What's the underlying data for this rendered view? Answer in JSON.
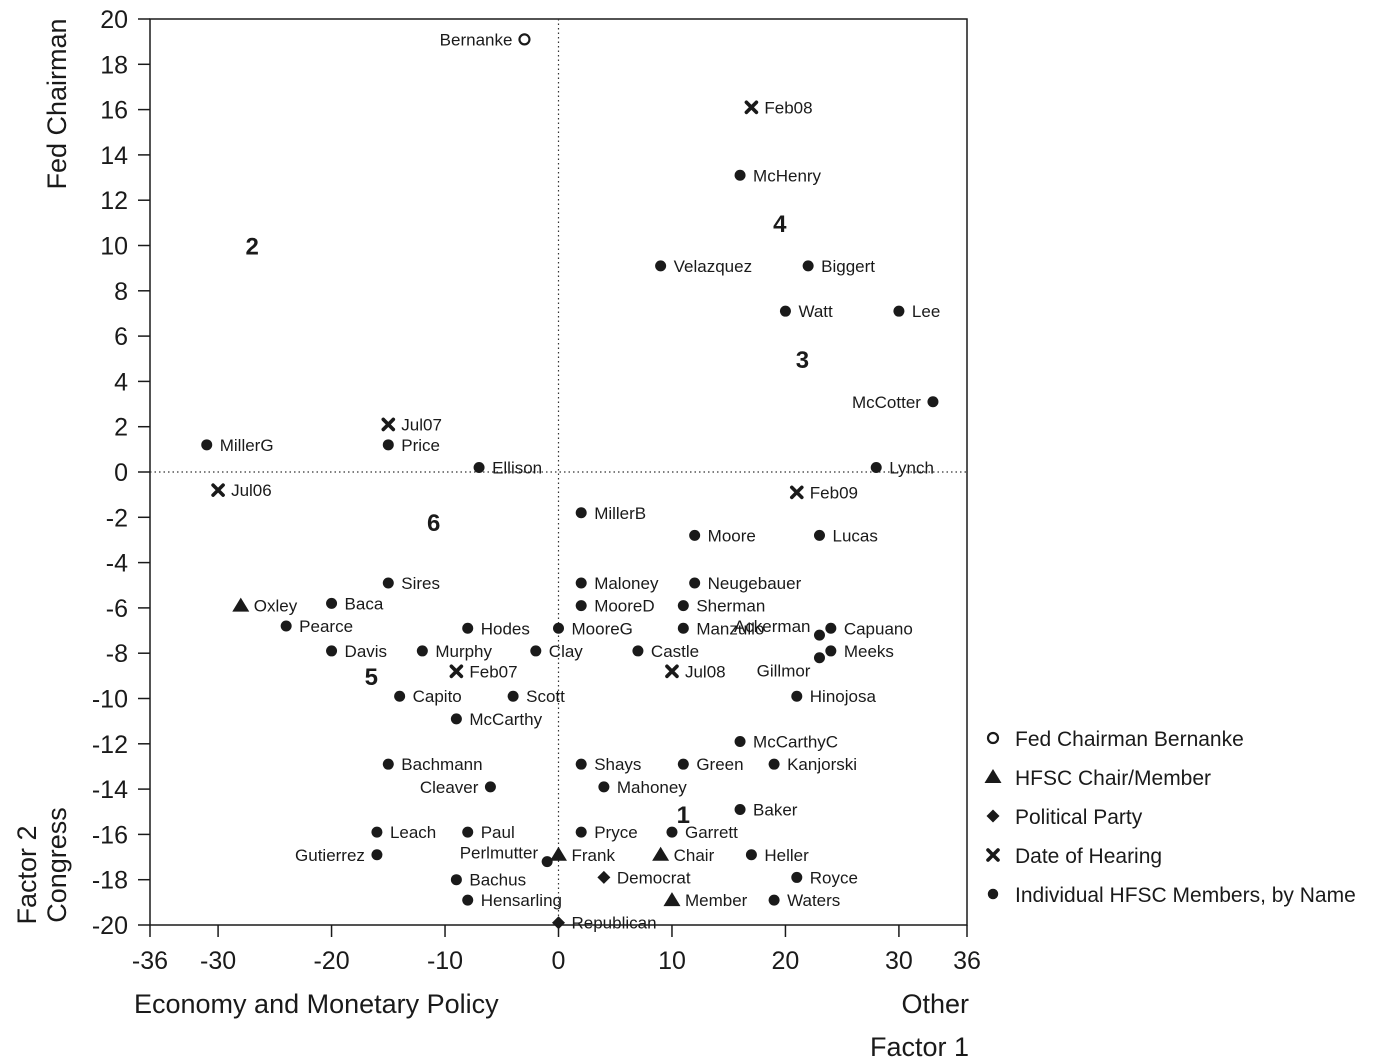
{
  "chart_data": {
    "type": "scatter",
    "title": "",
    "xlim": [
      -36,
      36
    ],
    "ylim": [
      -20,
      20
    ],
    "x_ticks": [
      "-36",
      "-30",
      "-20",
      "-10",
      "0",
      "10",
      "20",
      "30",
      "36"
    ],
    "y_ticks": [
      "20",
      "18",
      "16",
      "14",
      "12",
      "10",
      "8",
      "6",
      "4",
      "2",
      "0",
      "-2",
      "-4",
      "-6",
      "-8",
      "-10",
      "-12",
      "-14",
      "-16",
      "-18",
      "-20"
    ],
    "x_axis": {
      "label_left": "Economy and Monetary Policy",
      "label_right": "Other",
      "label_factor": "Factor 1"
    },
    "y_axis": {
      "label_top": "Fed Chairman",
      "label_bottom": "Congress",
      "label_factor": "Factor 2"
    },
    "reference_lines": {
      "x": 0,
      "y": 0,
      "style": "dotted"
    },
    "grid": false,
    "legend_position": "right",
    "legend": [
      {
        "marker": "circle-open",
        "label": "Fed Chairman Bernanke"
      },
      {
        "marker": "triangle",
        "label": "HFSC Chair/Member"
      },
      {
        "marker": "diamond",
        "label": "Political Party"
      },
      {
        "marker": "x",
        "label": "Date of Hearing"
      },
      {
        "marker": "circle",
        "label": "Individual HFSC Members, by Name"
      }
    ],
    "regions": [
      {
        "label": "1",
        "x": 11,
        "y": -15.1
      },
      {
        "label": "2",
        "x": -27,
        "y": 10
      },
      {
        "label": "3",
        "x": 21.5,
        "y": 5
      },
      {
        "label": "4",
        "x": 19.5,
        "y": 11
      },
      {
        "label": "5",
        "x": -16.5,
        "y": -9
      },
      {
        "label": "6",
        "x": -11,
        "y": -2.2
      }
    ],
    "points": [
      {
        "label": "Bernanke",
        "marker": "circle-open",
        "x": -3,
        "y": 19.1,
        "anchor": "left"
      },
      {
        "label": "Feb08",
        "marker": "x",
        "x": 17,
        "y": 16.1,
        "anchor": "right"
      },
      {
        "label": "McHenry",
        "marker": "circle",
        "x": 16,
        "y": 13.1,
        "anchor": "right"
      },
      {
        "label": "Velazquez",
        "marker": "circle",
        "x": 9,
        "y": 9.1,
        "anchor": "right"
      },
      {
        "label": "Biggert",
        "marker": "circle",
        "x": 22,
        "y": 9.1,
        "anchor": "right"
      },
      {
        "label": "Watt",
        "marker": "circle",
        "x": 20,
        "y": 7.1,
        "anchor": "right"
      },
      {
        "label": "Lee",
        "marker": "circle",
        "x": 30,
        "y": 7.1,
        "anchor": "right"
      },
      {
        "label": "McCotter",
        "marker": "circle",
        "x": 33,
        "y": 3.1,
        "anchor": "left"
      },
      {
        "label": "Jul07",
        "marker": "x",
        "x": -15,
        "y": 2.1,
        "anchor": "right"
      },
      {
        "label": "MillerG",
        "marker": "circle",
        "x": -31,
        "y": 1.2,
        "anchor": "right"
      },
      {
        "label": "Price",
        "marker": "circle",
        "x": -15,
        "y": 1.2,
        "anchor": "right"
      },
      {
        "label": "Ellison",
        "marker": "circle",
        "x": -7,
        "y": 0.2,
        "anchor": "right"
      },
      {
        "label": "Lynch",
        "marker": "circle",
        "x": 28,
        "y": 0.2,
        "anchor": "right"
      },
      {
        "label": "Jul06",
        "marker": "x",
        "x": -30,
        "y": -0.8,
        "anchor": "right"
      },
      {
        "label": "Feb09",
        "marker": "x",
        "x": 21,
        "y": -0.9,
        "anchor": "right"
      },
      {
        "label": "MillerB",
        "marker": "circle",
        "x": 2,
        "y": -1.8,
        "anchor": "right"
      },
      {
        "label": "Moore",
        "marker": "circle",
        "x": 12,
        "y": -2.8,
        "anchor": "right"
      },
      {
        "label": "Lucas",
        "marker": "circle",
        "x": 23,
        "y": -2.8,
        "anchor": "right"
      },
      {
        "label": "Sires",
        "marker": "circle",
        "x": -15,
        "y": -4.9,
        "anchor": "right"
      },
      {
        "label": "Maloney",
        "marker": "circle",
        "x": 2,
        "y": -4.9,
        "anchor": "right"
      },
      {
        "label": "Neugebauer",
        "marker": "circle",
        "x": 12,
        "y": -4.9,
        "anchor": "right"
      },
      {
        "label": "Oxley",
        "marker": "triangle",
        "x": -28,
        "y": -5.9,
        "anchor": "right"
      },
      {
        "label": "Baca",
        "marker": "circle",
        "x": -20,
        "y": -5.8,
        "anchor": "right"
      },
      {
        "label": "MooreD",
        "marker": "circle",
        "x": 2,
        "y": -5.9,
        "anchor": "right"
      },
      {
        "label": "Sherman",
        "marker": "circle",
        "x": 11,
        "y": -5.9,
        "anchor": "right"
      },
      {
        "label": "Pearce",
        "marker": "circle",
        "x": -24,
        "y": -6.8,
        "anchor": "right"
      },
      {
        "label": "Hodes",
        "marker": "circle",
        "x": -8,
        "y": -6.9,
        "anchor": "right"
      },
      {
        "label": "MooreG",
        "marker": "circle",
        "x": 0,
        "y": -6.9,
        "anchor": "right"
      },
      {
        "label": "Manzullo",
        "marker": "circle",
        "x": 11,
        "y": -6.9,
        "anchor": "right"
      },
      {
        "label": "Capuano",
        "marker": "circle",
        "x": 24,
        "y": -6.9,
        "anchor": "right"
      },
      {
        "label": "Ackerman",
        "marker": "circle",
        "x": 23,
        "y": -7.2,
        "anchor": "left-up"
      },
      {
        "label": "Davis",
        "marker": "circle",
        "x": -20,
        "y": -7.9,
        "anchor": "right"
      },
      {
        "label": "Murphy",
        "marker": "circle",
        "x": -12,
        "y": -7.9,
        "anchor": "right"
      },
      {
        "label": "Clay",
        "marker": "circle",
        "x": -2,
        "y": -7.9,
        "anchor": "right"
      },
      {
        "label": "Castle",
        "marker": "circle",
        "x": 7,
        "y": -7.9,
        "anchor": "right"
      },
      {
        "label": "Meeks",
        "marker": "circle",
        "x": 24,
        "y": -7.9,
        "anchor": "right"
      },
      {
        "label": "Gillmor",
        "marker": "circle",
        "x": 23,
        "y": -8.2,
        "anchor": "left-down"
      },
      {
        "label": "Feb07",
        "marker": "x",
        "x": -9,
        "y": -8.8,
        "anchor": "right"
      },
      {
        "label": "Jul08",
        "marker": "x",
        "x": 10,
        "y": -8.8,
        "anchor": "right"
      },
      {
        "label": "Capito",
        "marker": "circle",
        "x": -14,
        "y": -9.9,
        "anchor": "right"
      },
      {
        "label": "Scott",
        "marker": "circle",
        "x": -4,
        "y": -9.9,
        "anchor": "right"
      },
      {
        "label": "Hinojosa",
        "marker": "circle",
        "x": 21,
        "y": -9.9,
        "anchor": "right"
      },
      {
        "label": "McCarthy",
        "marker": "circle",
        "x": -9,
        "y": -10.9,
        "anchor": "right"
      },
      {
        "label": "McCarthyC",
        "marker": "circle",
        "x": 16,
        "y": -11.9,
        "anchor": "right"
      },
      {
        "label": "Bachmann",
        "marker": "circle",
        "x": -15,
        "y": -12.9,
        "anchor": "right"
      },
      {
        "label": "Shays",
        "marker": "circle",
        "x": 2,
        "y": -12.9,
        "anchor": "right"
      },
      {
        "label": "Green",
        "marker": "circle",
        "x": 11,
        "y": -12.9,
        "anchor": "right"
      },
      {
        "label": "Kanjorski",
        "marker": "circle",
        "x": 19,
        "y": -12.9,
        "anchor": "right"
      },
      {
        "label": "Cleaver",
        "marker": "circle",
        "x": -6,
        "y": -13.9,
        "anchor": "left"
      },
      {
        "label": "Mahoney",
        "marker": "circle",
        "x": 4,
        "y": -13.9,
        "anchor": "right"
      },
      {
        "label": "Baker",
        "marker": "circle",
        "x": 16,
        "y": -14.9,
        "anchor": "right"
      },
      {
        "label": "Leach",
        "marker": "circle",
        "x": -16,
        "y": -15.9,
        "anchor": "right"
      },
      {
        "label": "Paul",
        "marker": "circle",
        "x": -8,
        "y": -15.9,
        "anchor": "right"
      },
      {
        "label": "Pryce",
        "marker": "circle",
        "x": 2,
        "y": -15.9,
        "anchor": "right"
      },
      {
        "label": "Garrett",
        "marker": "circle",
        "x": 10,
        "y": -15.9,
        "anchor": "right"
      },
      {
        "label": "Gutierrez",
        "marker": "circle",
        "x": -16,
        "y": -16.9,
        "anchor": "left"
      },
      {
        "label": "Frank",
        "marker": "triangle",
        "x": 0,
        "y": -16.9,
        "anchor": "right"
      },
      {
        "label": "Chair",
        "marker": "triangle",
        "x": 9,
        "y": -16.9,
        "anchor": "right"
      },
      {
        "label": "Heller",
        "marker": "circle",
        "x": 17,
        "y": -16.9,
        "anchor": "right"
      },
      {
        "label": "Perlmutter",
        "marker": "circle",
        "x": -1,
        "y": -17.2,
        "anchor": "left-up"
      },
      {
        "label": "Democrat",
        "marker": "diamond",
        "x": 4,
        "y": -17.9,
        "anchor": "right"
      },
      {
        "label": "Royce",
        "marker": "circle",
        "x": 21,
        "y": -17.9,
        "anchor": "right"
      },
      {
        "label": "Bachus",
        "marker": "circle",
        "x": -9,
        "y": -18,
        "anchor": "right"
      },
      {
        "label": "Hensarling",
        "marker": "circle",
        "x": -8,
        "y": -18.9,
        "anchor": "right"
      },
      {
        "label": "Member",
        "marker": "triangle",
        "x": 10,
        "y": -18.9,
        "anchor": "right"
      },
      {
        "label": "Waters",
        "marker": "circle",
        "x": 19,
        "y": -18.9,
        "anchor": "right"
      },
      {
        "label": "Republican",
        "marker": "diamond",
        "x": 0,
        "y": -19.9,
        "anchor": "right"
      }
    ]
  }
}
